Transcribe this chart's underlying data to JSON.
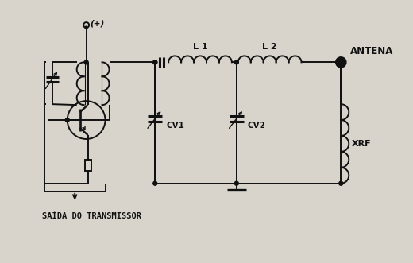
{
  "bg_color": "#d8d4cb",
  "line_color": "#111111",
  "label_saida": "SAÍDA DO TRANSMISSOR",
  "label_antena": "ANTENA",
  "label_L1": "L 1",
  "label_L2": "L 2",
  "label_CV1": "CV1",
  "label_CV2": "CV2",
  "label_XRF": "XRF",
  "label_plus": "(+)",
  "figsize": [
    5.2,
    3.31
  ],
  "dpi": 100
}
